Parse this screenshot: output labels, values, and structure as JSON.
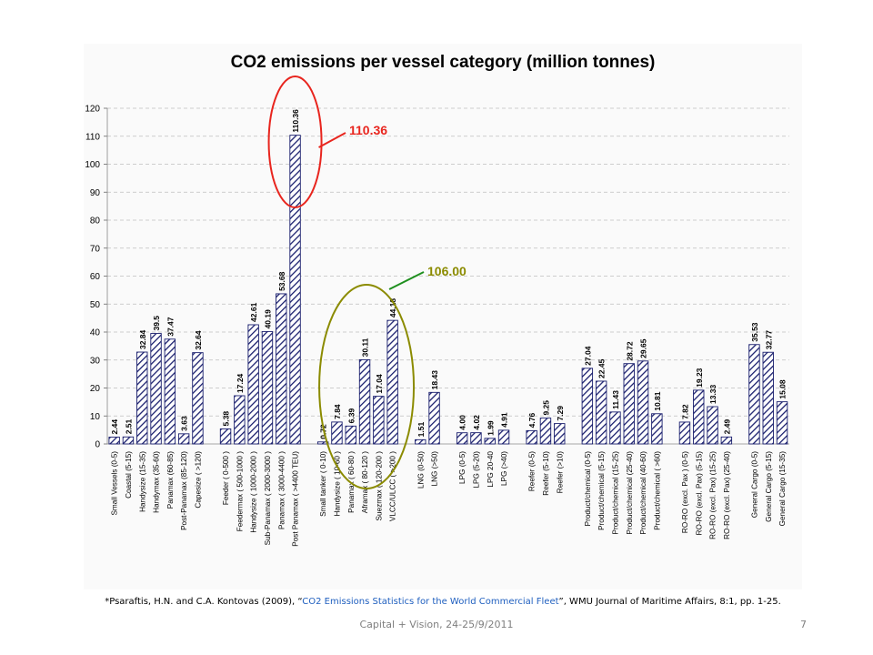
{
  "slide": {
    "footer": "Capital + Vision, 24-25/9/2011",
    "page_number": "7",
    "citation_pre": "*Psaraftis, H.N. and C.A. Kontovas (2009), “",
    "citation_title": "CO2 Emissions Statistics for the World Commercial Fleet",
    "citation_post": "”, WMU Journal of Maritime Affairs, 8:1, pp. 1-25."
  },
  "colors": {
    "bar_stroke": "#1a1f6e",
    "bar_hatch": "#1a1f6e",
    "red": "#e8251e",
    "olive": "#8b8b00",
    "green_line": "#1e8f1e",
    "grid": "#bfbfbf"
  },
  "chart_data": {
    "type": "bar",
    "title": "CO2 emissions per vessel category  (million tonnes)",
    "ylim": [
      0,
      120
    ],
    "yticks": [
      0,
      10,
      20,
      30,
      40,
      50,
      60,
      70,
      80,
      90,
      100,
      110,
      120
    ],
    "grid": true,
    "groups": [
      {
        "bars": [
          {
            "label": "Small Vessels (0-5)",
            "value": 2.44,
            "text": "2.44"
          },
          {
            "label": "Coastal (5-15)",
            "value": 2.51,
            "text": "2.51"
          },
          {
            "label": "Handysize (15-35)",
            "value": 32.84,
            "text": "32.84"
          },
          {
            "label": "Handymax (35-60)",
            "value": 39.5,
            "text": "39.5"
          },
          {
            "label": "Panamax (60-85)",
            "value": 37.47,
            "text": "37.47"
          },
          {
            "label": "Post-Panamax (85-120)",
            "value": 3.63,
            "text": "3.63"
          },
          {
            "label": "Capesize ( >120)",
            "value": 32.64,
            "text": "32.64"
          }
        ]
      },
      {
        "bars": [
          {
            "label": "Feeder ( 0-500 )",
            "value": 5.38,
            "text": "5.38"
          },
          {
            "label": "Feedermax ( 500-1000 )",
            "value": 17.24,
            "text": "17.24"
          },
          {
            "label": "Handysize ( 1000-2000 )",
            "value": 42.61,
            "text": "42.61"
          },
          {
            "label": "Sub-Panamax ( 2000-3000 )",
            "value": 40.19,
            "text": "40.19"
          },
          {
            "label": "Panamax ( 3000-4400 )",
            "value": 53.68,
            "text": "53.68"
          },
          {
            "label": "Post Panamax ( >4400 TEU)",
            "value": 110.36,
            "text": "110.36"
          }
        ]
      },
      {
        "bars": [
          {
            "label": "Small tanker ( 0-10)",
            "value": 0.72,
            "text": "0.72"
          },
          {
            "label": "Handysize ( 10-60 )",
            "value": 7.84,
            "text": "7.84"
          },
          {
            "label": "Panamax ( 60-80 )",
            "value": 6.39,
            "text": "6.39"
          },
          {
            "label": "Aframax ( 80-120 )",
            "value": 30.11,
            "text": "30.11"
          },
          {
            "label": "Suezmax ( 120-200 )",
            "value": 17.04,
            "text": "17.04"
          },
          {
            "label": "VLCC/ULCC ( >200 )",
            "value": 44.18,
            "text": "44.18"
          }
        ]
      },
      {
        "bars": [
          {
            "label": "LNG (0-50)",
            "value": 1.51,
            "text": "1.51"
          },
          {
            "label": "LNG (>50)",
            "value": 18.43,
            "text": "18.43"
          }
        ]
      },
      {
        "bars": [
          {
            "label": "LPG (0-5)",
            "value": 4.0,
            "text": "4.00"
          },
          {
            "label": "LPG (5-20)",
            "value": 4.02,
            "text": "4.02"
          },
          {
            "label": "LPG 20-40",
            "value": 1.99,
            "text": "1.99"
          },
          {
            "label": "LPG (>40)",
            "value": 4.91,
            "text": "4.91"
          }
        ]
      },
      {
        "bars": [
          {
            "label": "Reefer (0-5)",
            "value": 4.76,
            "text": "4.76"
          },
          {
            "label": "Reefer (5-10)",
            "value": 9.25,
            "text": "9.25"
          },
          {
            "label": "Reefer (>10)",
            "value": 7.29,
            "text": "7.29"
          }
        ]
      },
      {
        "bars": [
          {
            "label": "Product/chemical (0-5)",
            "value": 27.04,
            "text": "27.04"
          },
          {
            "label": "Product/chemical (5-15)",
            "value": 22.45,
            "text": "22.45"
          },
          {
            "label": "Product/chemical (15-25)",
            "value": 11.43,
            "text": "11.43"
          },
          {
            "label": "Product/chemical (25-40)",
            "value": 28.72,
            "text": "28.72"
          },
          {
            "label": "Product/chemical (40-60)",
            "value": 29.65,
            "text": "29.65"
          },
          {
            "label": "Product/chemical ( >60)",
            "value": 10.81,
            "text": "10.81"
          }
        ]
      },
      {
        "bars": [
          {
            "label": "RO-RO (excl. Pax ) (0-5)",
            "value": 7.82,
            "text": "7.82"
          },
          {
            "label": "RO-RO (excl. Pax) (5-15)",
            "value": 19.23,
            "text": "19.23"
          },
          {
            "label": "RO-RO (excl. Pax) (15-25)",
            "value": 13.33,
            "text": "13.33"
          },
          {
            "label": "RO-RO (excl. Pax) (25-40)",
            "value": 2.49,
            "text": "2.49"
          }
        ]
      },
      {
        "bars": [
          {
            "label": "General Cargo (0-5)",
            "value": 35.53,
            "text": "35.53"
          },
          {
            "label": "General Cargo (5-15)",
            "value": 32.77,
            "text": "32.77"
          },
          {
            "label": "General Cargo (15-35)",
            "value": 15.08,
            "text": "15.08"
          }
        ]
      }
    ],
    "annotations": [
      {
        "text": "110.36",
        "color": "#e8251e",
        "points_to": "Post Panamax ( >4400 TEU)"
      },
      {
        "text": "106.00",
        "color": "#8b8b00",
        "points_to": "Panamax ( 60-80 ) to VLCC/ULCC ( >200 )"
      }
    ]
  }
}
